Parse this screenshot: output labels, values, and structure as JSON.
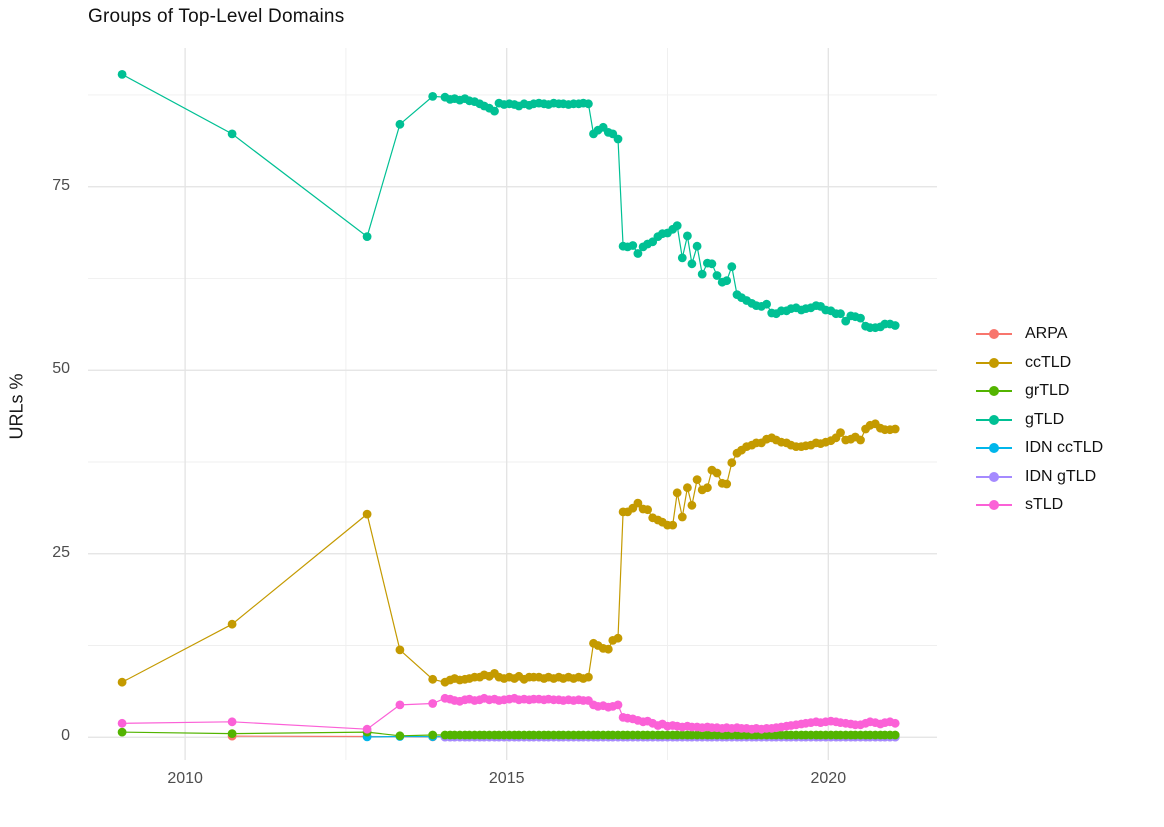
{
  "page": {
    "background": "#ffffff"
  },
  "chart_data": {
    "type": "line",
    "title": "Groups of Top-Level Domains",
    "xlabel": "",
    "ylabel": "URLs %",
    "grid": "major+minor, no axis lines, white panel (ggplot minimal theme)",
    "legend_position": "right",
    "marker": "point+line",
    "xlim": [
      2008.49,
      2021.69
    ],
    "ylim": [
      -3.1,
      93.9
    ],
    "x_ticks": {
      "major": [
        2010,
        2015,
        2020
      ],
      "labels": [
        "2010",
        "2015",
        "2020"
      ],
      "minor": [
        2012.5,
        2017.5
      ]
    },
    "y_ticks": {
      "major": [
        0,
        25,
        50,
        75
      ],
      "labels": [
        "0",
        "25",
        "50",
        "75"
      ],
      "minor": [
        12.5,
        37.5,
        62.5,
        87.5
      ]
    },
    "colors": {
      "major_grid": "#e3e3e3",
      "minor_grid": "#efefef",
      "tick_text": "#4d4d4d",
      "title_text": "#111111"
    },
    "dense_x": [
      2013.85,
      2014.04,
      2014.12,
      2014.19,
      2014.27,
      2014.35,
      2014.42,
      2014.5,
      2014.58,
      2014.65,
      2014.73,
      2014.81,
      2014.88,
      2014.96,
      2015.04,
      2015.12,
      2015.19,
      2015.27,
      2015.35,
      2015.42,
      2015.5,
      2015.58,
      2015.65,
      2015.73,
      2015.81,
      2015.88,
      2015.96,
      2016.04,
      2016.12,
      2016.19,
      2016.27,
      2016.35,
      2016.42,
      2016.5,
      2016.58,
      2016.65,
      2016.73,
      2016.81,
      2016.88,
      2016.96,
      2017.04,
      2017.12,
      2017.19,
      2017.27,
      2017.35,
      2017.42,
      2017.5,
      2017.58,
      2017.65,
      2017.73,
      2017.81,
      2017.88,
      2017.96,
      2018.04,
      2018.12,
      2018.19,
      2018.27,
      2018.35,
      2018.42,
      2018.5,
      2018.58,
      2018.65,
      2018.73,
      2018.81,
      2018.88,
      2018.96,
      2019.04,
      2019.12,
      2019.19,
      2019.27,
      2019.35,
      2019.42,
      2019.5,
      2019.58,
      2019.65,
      2019.73,
      2019.81,
      2019.88,
      2019.96,
      2020.04,
      2020.12,
      2020.19,
      2020.27,
      2020.35,
      2020.42,
      2020.5,
      2020.58,
      2020.65,
      2020.73,
      2020.81,
      2020.88,
      2020.96,
      2021.04
    ],
    "series": [
      {
        "name": "ARPA",
        "color": "#F8766D",
        "early": [
          [
            2010.73,
            0.15
          ],
          [
            2012.83,
            0.1
          ]
        ],
        "dense_const": 0.05,
        "dense_start": 0
      },
      {
        "name": "ccTLD",
        "color": "#C49A00",
        "early": [
          [
            2009.02,
            7.5
          ],
          [
            2010.73,
            15.4
          ],
          [
            2012.83,
            30.4
          ],
          [
            2013.34,
            11.9
          ]
        ],
        "dense_y": [
          7.9,
          7.5,
          7.8,
          8.0,
          7.8,
          7.9,
          8.0,
          8.2,
          8.2,
          8.5,
          8.3,
          8.7,
          8.2,
          8.0,
          8.2,
          8.0,
          8.3,
          7.9,
          8.2,
          8.2,
          8.2,
          8.0,
          8.2,
          8.0,
          8.2,
          8.0,
          8.2,
          8.0,
          8.2,
          8.0,
          8.2,
          12.8,
          12.5,
          12.1,
          12.0,
          13.2,
          13.5,
          30.7,
          30.7,
          31.2,
          31.9,
          31.1,
          31.0,
          29.9,
          29.6,
          29.3,
          28.9,
          28.9,
          33.3,
          30.0,
          34.0,
          31.6,
          35.1,
          33.7,
          34.0,
          36.4,
          36.0,
          34.6,
          34.5,
          37.4,
          38.7,
          39.1,
          39.6,
          39.8,
          40.1,
          40.1,
          40.6,
          40.8,
          40.5,
          40.2,
          40.1,
          39.8,
          39.6,
          39.6,
          39.7,
          39.8,
          40.1,
          40.0,
          40.2,
          40.4,
          40.8,
          41.5,
          40.5,
          40.6,
          40.9,
          40.5,
          42.0,
          42.5,
          42.7,
          42.1,
          41.9,
          41.9,
          42.0
        ]
      },
      {
        "name": "grTLD",
        "color": "#53B400",
        "early": [
          [
            2009.02,
            0.7
          ],
          [
            2010.73,
            0.5
          ],
          [
            2012.83,
            0.7
          ],
          [
            2013.34,
            0.2
          ]
        ],
        "dense_const": 0.3,
        "dense_start": 0
      },
      {
        "name": "gTLD",
        "color": "#00C094",
        "early": [
          [
            2009.02,
            90.3
          ],
          [
            2010.73,
            82.2
          ],
          [
            2012.83,
            68.2
          ],
          [
            2013.34,
            83.5
          ]
        ],
        "dense_y": [
          87.3,
          87.2,
          86.9,
          87.0,
          86.8,
          87.0,
          86.7,
          86.6,
          86.3,
          86.0,
          85.7,
          85.3,
          86.4,
          86.2,
          86.3,
          86.2,
          86.0,
          86.3,
          86.1,
          86.3,
          86.4,
          86.3,
          86.2,
          86.4,
          86.3,
          86.3,
          86.2,
          86.3,
          86.3,
          86.4,
          86.3,
          82.2,
          82.7,
          83.1,
          82.4,
          82.2,
          81.5,
          66.9,
          66.8,
          67.0,
          65.9,
          66.8,
          67.2,
          67.5,
          68.2,
          68.6,
          68.7,
          69.2,
          69.7,
          65.3,
          68.3,
          64.5,
          66.9,
          63.1,
          64.6,
          64.5,
          62.9,
          62.0,
          62.2,
          64.1,
          60.3,
          59.9,
          59.5,
          59.1,
          58.8,
          58.7,
          59.0,
          57.8,
          57.7,
          58.1,
          58.1,
          58.4,
          58.5,
          58.2,
          58.4,
          58.5,
          58.8,
          58.7,
          58.2,
          58.1,
          57.7,
          57.7,
          56.7,
          57.4,
          57.3,
          57.1,
          56.0,
          55.8,
          55.8,
          55.9,
          56.3,
          56.3,
          56.1
        ]
      },
      {
        "name": "IDN ccTLD",
        "color": "#00B6EB",
        "early": [
          [
            2012.83,
            0.05
          ],
          [
            2013.34,
            0.1
          ]
        ],
        "dense_const": 0.08,
        "dense_start": 0
      },
      {
        "name": "IDN gTLD",
        "color": "#A58AFF",
        "early": [],
        "dense_const": 0.02,
        "dense_start": 1
      },
      {
        "name": "sTLD",
        "color": "#FB61D7",
        "early": [
          [
            2009.02,
            1.9
          ],
          [
            2010.73,
            2.1
          ],
          [
            2012.83,
            1.1
          ],
          [
            2013.34,
            4.4
          ]
        ],
        "dense_y": [
          4.6,
          5.3,
          5.2,
          5.0,
          4.9,
          5.1,
          5.2,
          5.0,
          5.1,
          5.3,
          5.1,
          5.2,
          5.0,
          5.1,
          5.2,
          5.3,
          5.1,
          5.2,
          5.1,
          5.2,
          5.2,
          5.1,
          5.2,
          5.1,
          5.1,
          5.0,
          5.1,
          5.0,
          5.1,
          5.0,
          5.0,
          4.4,
          4.2,
          4.3,
          4.1,
          4.2,
          4.4,
          2.7,
          2.6,
          2.5,
          2.3,
          2.1,
          2.2,
          1.9,
          1.6,
          1.8,
          1.5,
          1.6,
          1.5,
          1.4,
          1.5,
          1.4,
          1.4,
          1.3,
          1.4,
          1.3,
          1.3,
          1.2,
          1.3,
          1.2,
          1.3,
          1.2,
          1.2,
          1.1,
          1.2,
          1.1,
          1.2,
          1.2,
          1.3,
          1.4,
          1.5,
          1.6,
          1.7,
          1.8,
          1.9,
          2.0,
          2.1,
          2.0,
          2.1,
          2.2,
          2.1,
          2.0,
          1.9,
          1.8,
          1.7,
          1.7,
          1.9,
          2.1,
          2.0,
          1.8,
          2.0,
          2.1,
          1.9
        ]
      }
    ],
    "draw_order": [
      "ARPA",
      "IDN ccTLD",
      "IDN gTLD",
      "grTLD",
      "sTLD",
      "ccTLD",
      "gTLD"
    ]
  },
  "legend": {
    "items": [
      "ARPA",
      "ccTLD",
      "grTLD",
      "gTLD",
      "IDN ccTLD",
      "IDN gTLD",
      "sTLD"
    ]
  }
}
